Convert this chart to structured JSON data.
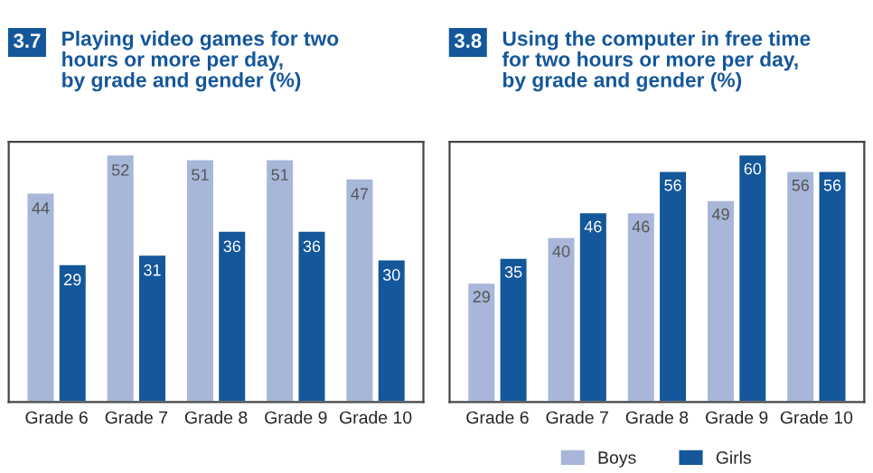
{
  "chart_data": [
    {
      "type": "bar",
      "title": "3.7 Playing video games for two\nhours or more per day,\nby grade and gender (%)",
      "categories": [
        "Grade 6",
        "Grade 7",
        "Grade 8",
        "Grade 9",
        "Grade 10"
      ],
      "series": [
        {
          "color": "#a7b6d9",
          "values": [
            44,
            52,
            51,
            51,
            47
          ]
        },
        {
          "color": "#14579a",
          "values": [
            29,
            31,
            36,
            36,
            30
          ]
        }
      ],
      "data_labels": true,
      "tick_labels": "x",
      "grid": false
    },
    {
      "type": "bar",
      "title": "3.8 Using the computer in free time\nfor two hours or more per day,\nby grade and gender (%)",
      "categories": [
        "Grade 6",
        "Grade 7",
        "Grade 8",
        "Grade 9",
        "Grade 10"
      ],
      "series": [
        {
          "name": "Boys",
          "color": "#a7b6d9",
          "values": [
            29,
            40,
            46,
            49,
            56
          ]
        },
        {
          "name": "Girls",
          "color": "#14579a",
          "values": [
            35,
            46,
            56,
            60,
            56
          ]
        }
      ],
      "data_labels": true,
      "tick_labels": "x",
      "grid": false,
      "legend": "bottom"
    }
  ]
}
